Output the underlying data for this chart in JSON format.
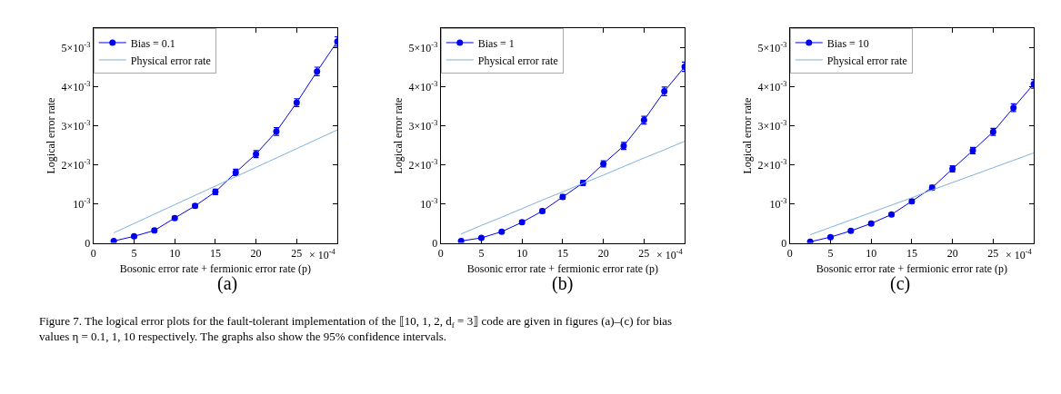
{
  "chart_data": [
    {
      "type": "line",
      "xlabel": "Bosonic error rate + fermionic error rate (p)",
      "ylabel": "Logical error rate",
      "legend": "top left",
      "x": [
        2.5,
        5,
        7.5,
        10,
        12.5,
        15,
        17.5,
        20,
        22.5,
        25,
        27.5,
        30
      ],
      "series": [
        {
          "name": "Bias = 0.1",
          "color": "#0000ee",
          "marker": "circle",
          "values": [
            5e-05,
            0.00017,
            0.00032,
            0.00064,
            0.00095,
            0.00131,
            0.00181,
            0.00228,
            0.00286,
            0.0036,
            0.0044,
            0.00517
          ],
          "errors": [
            2e-05,
            3e-05,
            4e-05,
            4e-05,
            5e-05,
            7e-05,
            8e-05,
            9e-05,
            0.0001,
            0.0001,
            0.00011,
            0.00012
          ]
        },
        {
          "name": "Physical error rate",
          "color": "#7fb2dc",
          "marker": "none",
          "values": [
            0.00026,
            0.0005,
            0.00074,
            0.00098,
            0.00122,
            0.00146,
            0.0017,
            0.00194,
            0.00218,
            0.00242,
            0.00266,
            0.0029
          ]
        }
      ],
      "xlim": [
        0,
        30
      ],
      "xticks": [
        0,
        5,
        10,
        15,
        20,
        25
      ],
      "ylim": [
        0,
        0.0055
      ],
      "yticks": [
        {
          "value": 0,
          "label": "0"
        },
        {
          "value": 0.001,
          "label": "10$^{-3}$"
        },
        {
          "value": 0.002,
          "label": "2×10$^{-3}$"
        },
        {
          "value": 0.003,
          "label": "3×10$^{-3}$"
        },
        {
          "value": 0.004,
          "label": "4×10$^{-3}$"
        },
        {
          "value": 0.005,
          "label": "5×10$^{-3}$"
        }
      ],
      "annotations": [
        "(a)",
        "× 10$^{-4}$",
        "Figure 7. The logical error plots for the fault-tolerant implementation of the ⟦10, 1, 2, d$_{f}$ = 3⟧ code are given in figures (a)–(c) for bias values η = 0.1, 1, 10 respectively. The graphs also show the 95% confidence intervals."
      ]
    },
    {
      "type": "line",
      "xlabel": "Bosonic error rate + fermionic error rate (p)",
      "ylabel": "Logical error rate",
      "legend": "top left",
      "x": [
        2.5,
        5,
        7.5,
        10,
        12.5,
        15,
        17.5,
        20,
        22.5,
        25,
        27.5,
        30
      ],
      "series": [
        {
          "name": "Bias = 1",
          "color": "#0000ee",
          "marker": "circle",
          "values": [
            5e-05,
            0.00013,
            0.00029,
            0.00053,
            0.00082,
            0.00118,
            0.00154,
            0.00203,
            0.00249,
            0.00315,
            0.00389,
            0.00452
          ],
          "errors": [
            2e-05,
            3e-05,
            3e-05,
            4e-05,
            5e-05,
            6e-05,
            7e-05,
            8e-05,
            9e-05,
            0.0001,
            0.00011,
            0.00012
          ]
        },
        {
          "name": "Physical error rate",
          "color": "#7fb2dc",
          "marker": "none",
          "values": [
            0.00023,
            0.00045,
            0.00066,
            0.00088,
            0.0011,
            0.00131,
            0.00153,
            0.00174,
            0.00196,
            0.00218,
            0.00239,
            0.00261
          ]
        }
      ],
      "xlim": [
        0,
        30
      ],
      "xticks": [
        0,
        5,
        10,
        15,
        20,
        25
      ],
      "ylim": [
        0,
        0.0055
      ],
      "yticks": [
        {
          "value": 0,
          "label": "0"
        },
        {
          "value": 0.001,
          "label": "10$^{-3}$"
        },
        {
          "value": 0.002,
          "label": "2×10$^{-3}$"
        },
        {
          "value": 0.003,
          "label": "3×10$^{-3}$"
        },
        {
          "value": 0.004,
          "label": "4×10$^{-3}$"
        },
        {
          "value": 0.005,
          "label": "5×10$^{-3}$"
        }
      ],
      "annotations": [
        "(b)",
        "× 10$^{-4}$"
      ]
    },
    {
      "type": "line",
      "xlabel": "Bosonic error rate + fermionic error rate (p)",
      "ylabel": "Logical error rate",
      "legend": "top left",
      "x": [
        2.5,
        5,
        7.5,
        10,
        12.5,
        15,
        17.5,
        20,
        22.5,
        25,
        27.5,
        30
      ],
      "series": [
        {
          "name": "Bias = 10",
          "color": "#0000ee",
          "marker": "circle",
          "values": [
            3e-05,
            0.00015,
            0.00031,
            0.0005,
            0.00073,
            0.00107,
            0.00142,
            0.0019,
            0.00237,
            0.00285,
            0.00347,
            0.00408
          ],
          "errors": [
            2e-05,
            3e-05,
            3e-05,
            4e-05,
            4e-05,
            5e-05,
            6e-05,
            8e-05,
            8e-05,
            9e-05,
            0.0001,
            0.00011
          ]
        },
        {
          "name": "Physical error rate",
          "color": "#7fb2dc",
          "marker": "none",
          "values": [
            0.00021,
            0.0004,
            0.00059,
            0.00078,
            0.00097,
            0.00116,
            0.00136,
            0.00155,
            0.00174,
            0.00193,
            0.00212,
            0.00231
          ]
        }
      ],
      "xlim": [
        0,
        30
      ],
      "xticks": [
        0,
        5,
        10,
        15,
        20,
        25
      ],
      "ylim": [
        0,
        0.0055
      ],
      "yticks": [
        {
          "value": 0,
          "label": "0"
        },
        {
          "value": 0.001,
          "label": "10$^{-3}$"
        },
        {
          "value": 0.002,
          "label": "2×10$^{-3}$"
        },
        {
          "value": 0.003,
          "label": "3×10$^{-3}$"
        },
        {
          "value": 0.004,
          "label": "4×10$^{-3}$"
        },
        {
          "value": 0.005,
          "label": "5×10$^{-3}$"
        }
      ],
      "annotations": [
        "(c)",
        "× 10$^{-4}$"
      ]
    }
  ]
}
